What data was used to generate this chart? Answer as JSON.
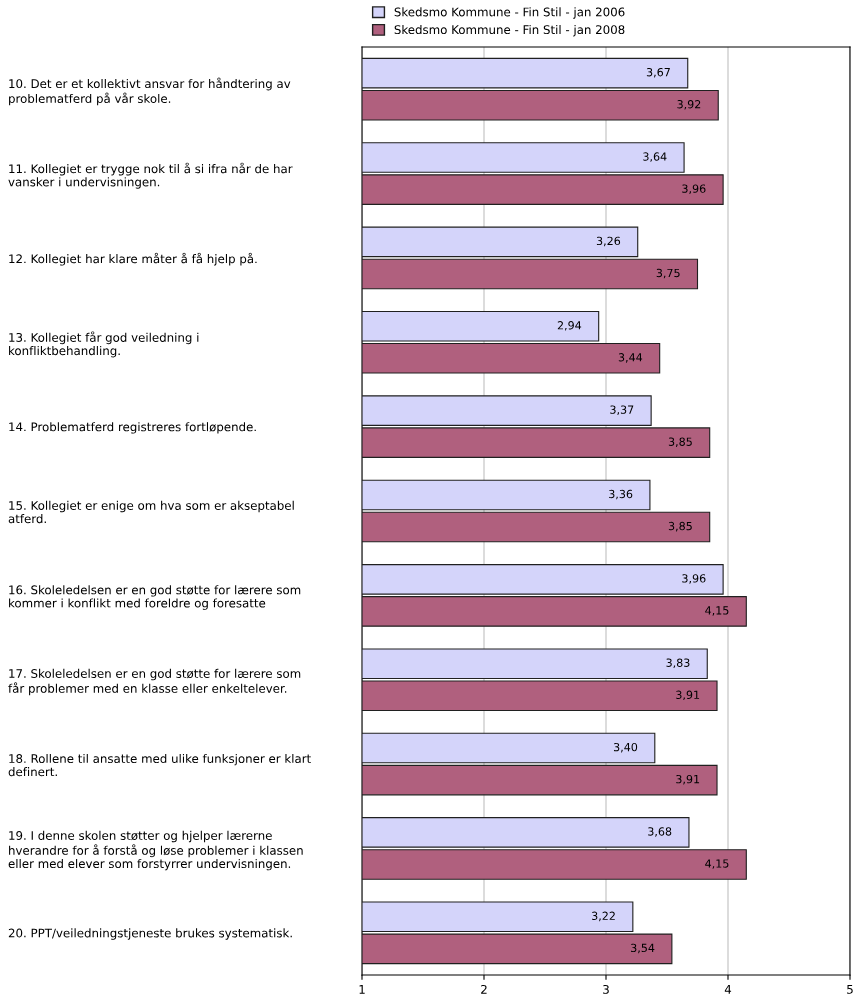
{
  "chart_data": {
    "type": "bar",
    "orientation": "horizontal",
    "categories": [
      "10. Det er et kollektivt ansvar for håndtering av\nproblematferd på vår skole.",
      "11. Kollegiet er trygge nok til å si ifra når de har\nvansker i undervisningen.",
      "12. Kollegiet har klare måter å få hjelp på.",
      "13. Kollegiet får god veiledning i\nkonfliktbehandling.",
      "14. Problematferd registreres fortløpende.",
      "15. Kollegiet er enige om hva som er akseptabel\natferd.",
      "16. Skoleledelsen er en god støtte for lærere som\nkommer i konflikt med foreldre og foresatte",
      "17. Skoleledelsen er en god støtte for lærere som\nfår problemer med en klasse eller enkeltelever.",
      "18. Rollene til ansatte med ulike funksjoner er klart\ndefinert.",
      "19. I denne skolen støtter og hjelper lærerne\nhverandre for å forstå og løse problemer i klassen\neller med elever som forstyrrer undervisningen.",
      "20. PPT/veiledningstjeneste brukes systematisk."
    ],
    "series": [
      {
        "name": "Skedsmo Kommune - Fin Stil - jan 2006",
        "color": "#d4d4fa",
        "values": [
          3.67,
          3.64,
          3.26,
          2.94,
          3.37,
          3.36,
          3.96,
          3.83,
          3.4,
          3.68,
          3.22
        ],
        "value_labels": [
          "3,67",
          "3,64",
          "3,26",
          "2,94",
          "3,37",
          "3,36",
          "3,96",
          "3,83",
          "3,40",
          "3,68",
          "3,22"
        ]
      },
      {
        "name": "Skedsmo Kommune - Fin Stil - jan 2008",
        "color": "#b0607e",
        "values": [
          3.92,
          3.96,
          3.75,
          3.44,
          3.85,
          3.85,
          4.15,
          3.91,
          3.91,
          4.15,
          3.54
        ],
        "value_labels": [
          "3,92",
          "3,96",
          "3,75",
          "3,44",
          "3,85",
          "3,85",
          "4,15",
          "3,91",
          "3,91",
          "4,15",
          "3,54"
        ]
      }
    ],
    "xlim": [
      1,
      5
    ],
    "xticks": [
      1,
      2,
      3,
      4,
      5
    ],
    "grid": "x",
    "legend": "top"
  }
}
